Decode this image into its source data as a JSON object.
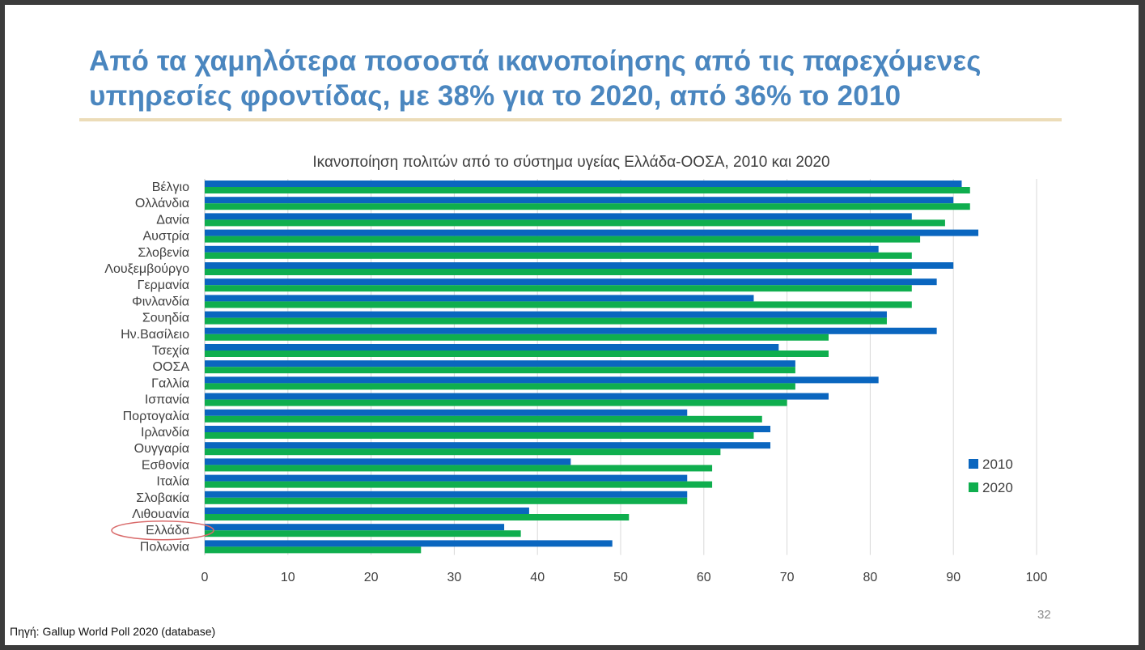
{
  "slide": {
    "title": "Από τα χαμηλότερα ποσοστά ικανοποίησης από τις παρεχόμενες υπηρεσίες φροντίδας, με 38% για το 2020, από 36% το 2010",
    "source": "Πηγή: Gallup World Poll 2020 (database)",
    "page_number": "32"
  },
  "colors": {
    "title": "#4a86bf",
    "series_2010": "#0a66bf",
    "series_2020": "#0fae4e",
    "highlight_ellipse": "#d96a6a"
  },
  "chart_data": {
    "type": "bar",
    "orientation": "horizontal",
    "title": "Ικανοποίηση πολιτών από το σύστημα υγείας Ελλάδα-ΟΟΣΑ, 2010 και 2020",
    "xlabel": "",
    "ylabel": "",
    "xlim": [
      0,
      100
    ],
    "x_ticks": [
      0,
      10,
      20,
      30,
      40,
      50,
      60,
      70,
      80,
      90,
      100
    ],
    "grid": "vertical",
    "legend_position": "right",
    "highlighted_category": "Ελλάδα",
    "categories": [
      "Βέλγιο",
      "Ολλάνδια",
      "Δανία",
      "Αυστρία",
      "Σλοβενία",
      "Λουξεμβούργο",
      "Γερμανία",
      "Φινλανδία",
      "Σουηδία",
      "Ην.Βασίλειο",
      "Τσεχία",
      "ΟΟΣΑ",
      "Γαλλία",
      "Ισπανία",
      "Πορτογαλία",
      "Ιρλανδία",
      "Ουγγαρία",
      "Εσθονία",
      "Ιταλία",
      "Σλοβακία",
      "Λιθουανία",
      "Ελλάδα",
      "Πολωνία"
    ],
    "series": [
      {
        "name": "2010",
        "values": [
          91,
          90,
          85,
          93,
          81,
          90,
          88,
          66,
          82,
          88,
          69,
          71,
          81,
          75,
          58,
          68,
          68,
          44,
          58,
          58,
          39,
          36,
          49
        ]
      },
      {
        "name": "2020",
        "values": [
          92,
          92,
          89,
          86,
          85,
          85,
          85,
          85,
          82,
          75,
          75,
          71,
          71,
          70,
          67,
          66,
          62,
          61,
          61,
          58,
          51,
          38,
          26
        ]
      }
    ]
  }
}
